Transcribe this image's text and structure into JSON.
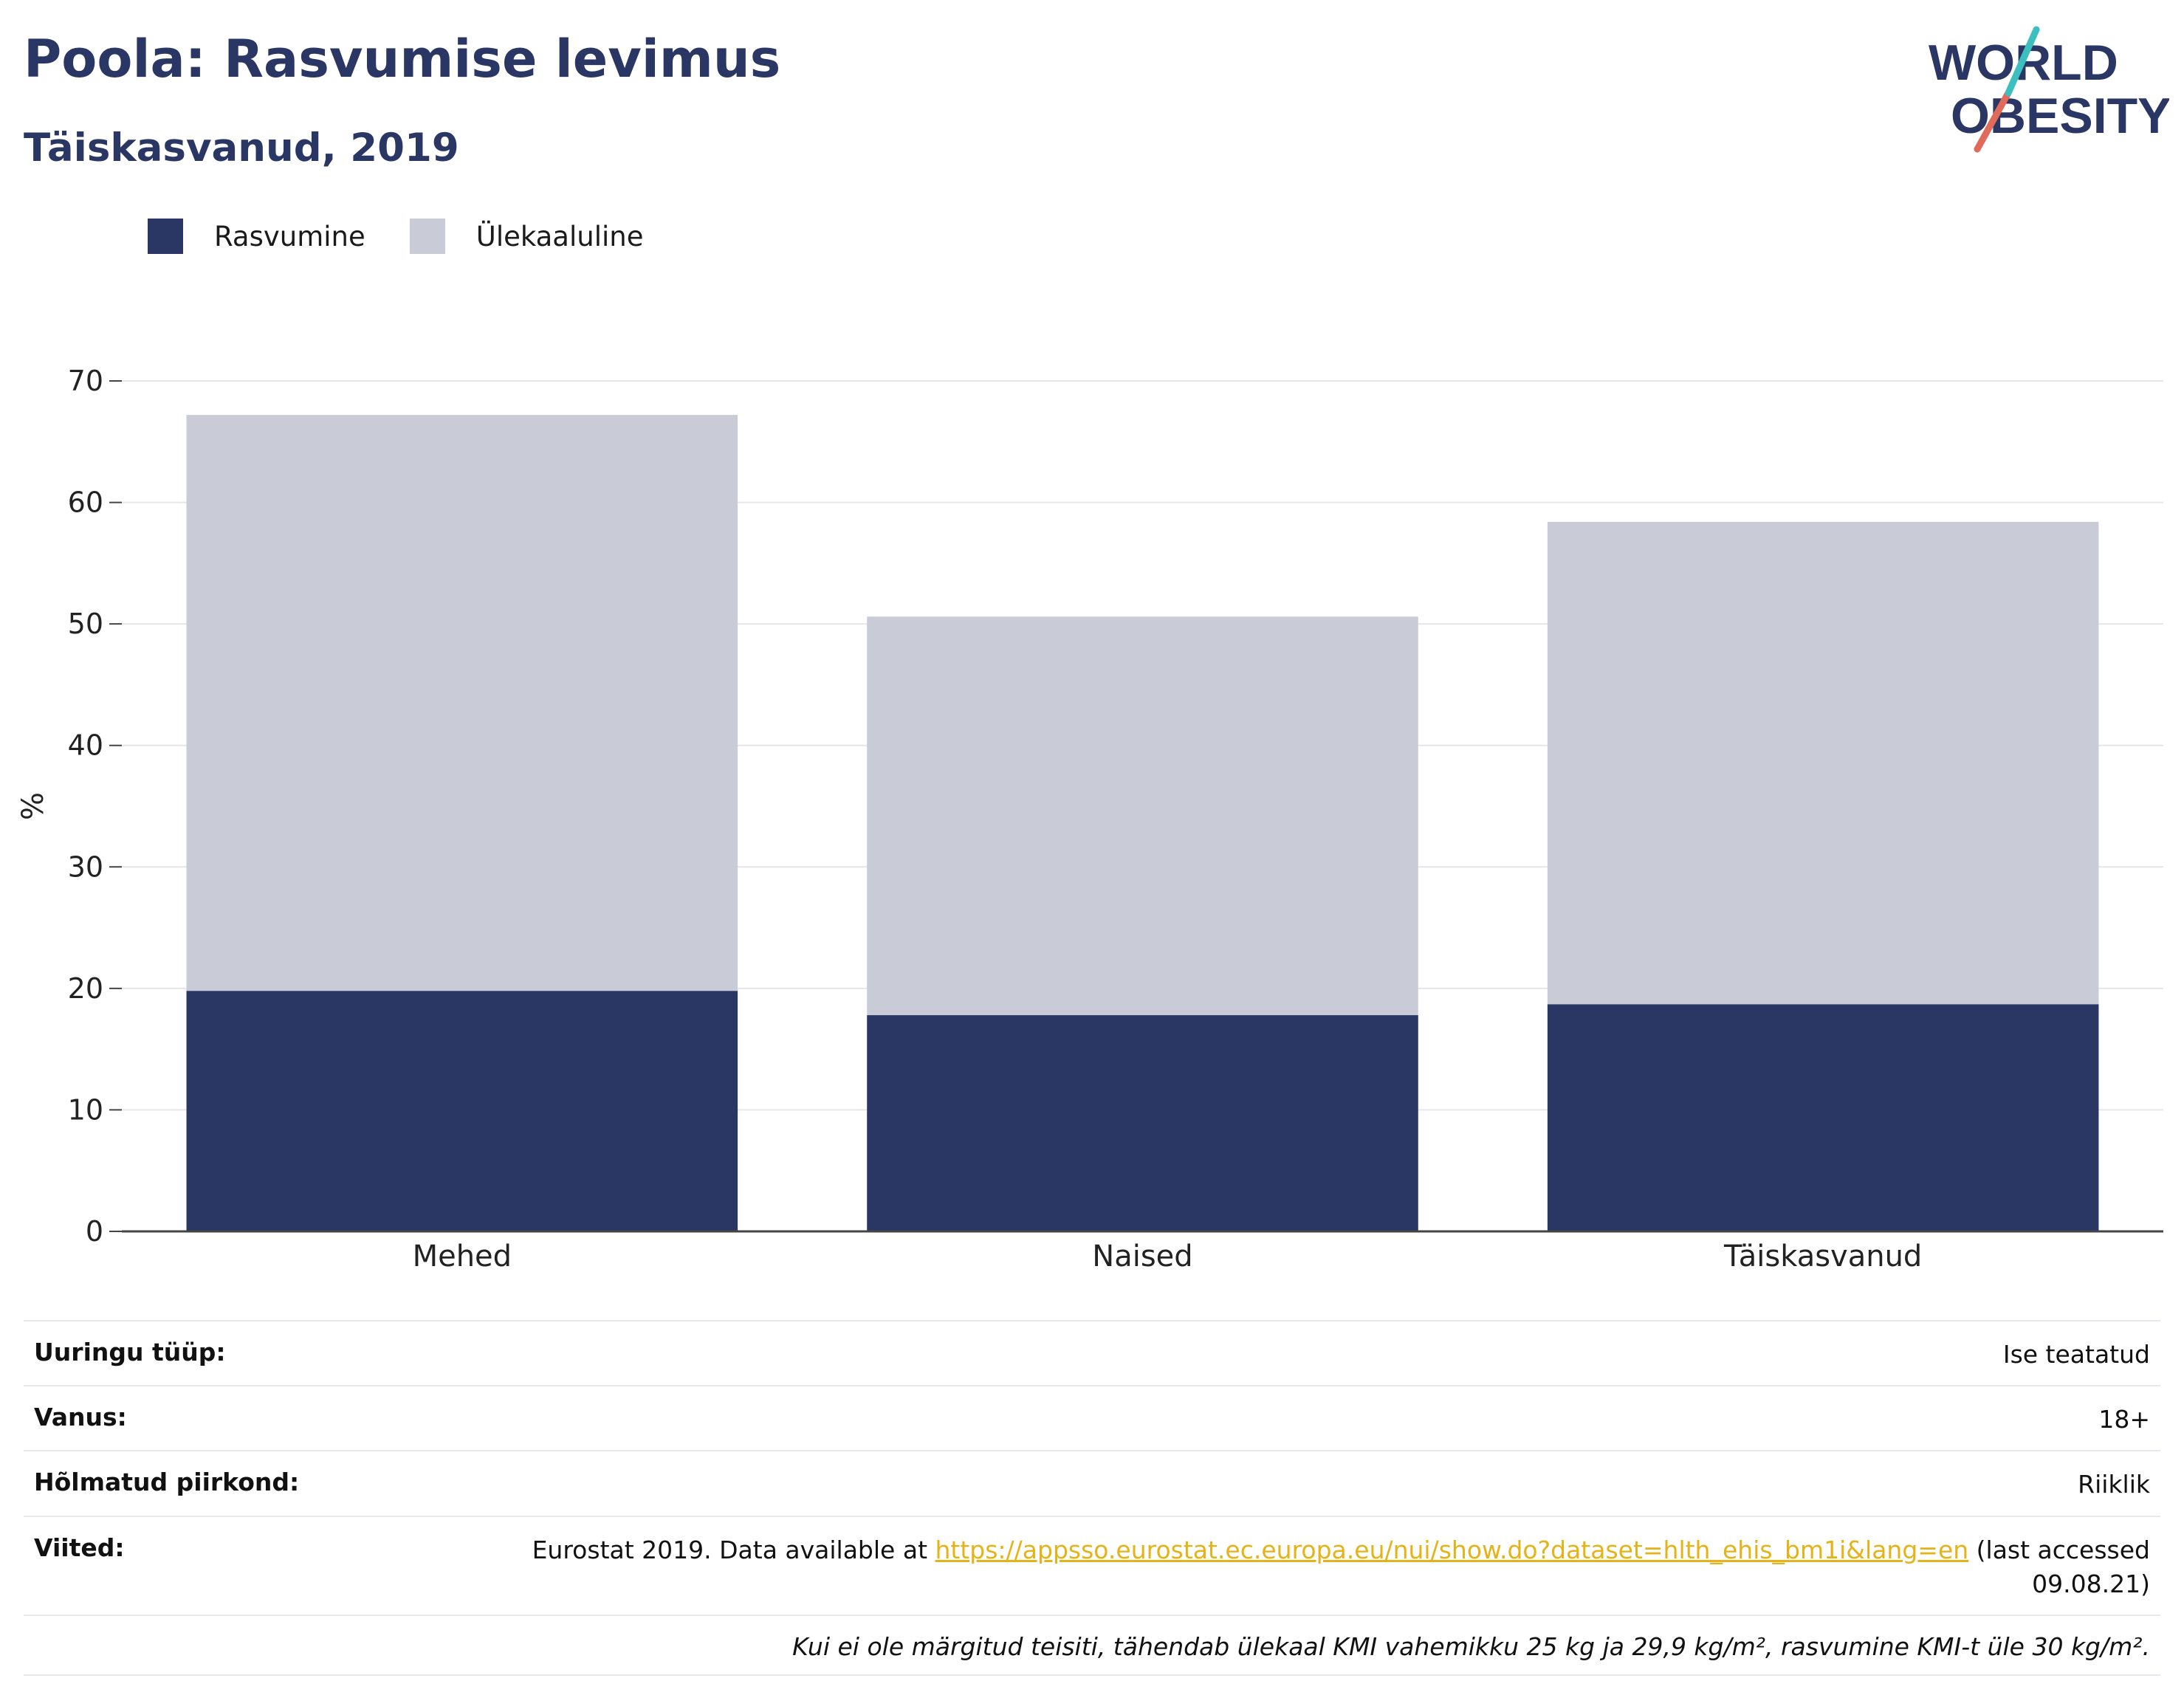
{
  "header": {
    "title": "Poola: Rasvumise levimus",
    "subtitle": "Täiskasvanud, 2019"
  },
  "logo": {
    "line1": "WORLD",
    "line2": "OBESITY",
    "icon": "world-obesity-logo"
  },
  "colors": {
    "obesity": "#2a3764",
    "overweight": "#c9ccd7",
    "accent_red": "#e06b5b",
    "accent_teal": "#3ebfbf",
    "link": "#e5b218"
  },
  "legend": [
    {
      "label": "Rasvumine",
      "color": "#2a3764"
    },
    {
      "label": "Ülekaaluline",
      "color": "#c9ccd7"
    }
  ],
  "chart_data": {
    "type": "bar",
    "stacked": true,
    "categories": [
      "Mehed",
      "Naised",
      "Täiskasvanud"
    ],
    "series": [
      {
        "name": "Rasvumine",
        "values": [
          19.8,
          17.8,
          18.7
        ]
      },
      {
        "name": "Ülekaaluline",
        "values": [
          47.4,
          32.8,
          39.7
        ]
      }
    ],
    "ylabel": "%",
    "ylim": [
      0,
      70
    ],
    "yticks": [
      0,
      10,
      20,
      30,
      40,
      50,
      60,
      70
    ],
    "grid": true,
    "legend_position": "top-left"
  },
  "info": {
    "survey_type_label": "Uuringu tüüp:",
    "survey_type_value": "Ise teatatud",
    "age_label": "Vanus:",
    "age_value": "18+",
    "region_label": "Hõlmatud piirkond:",
    "region_value": "Riiklik",
    "refs_label": "Viited:",
    "refs_prefix": "Eurostat 2019. Data available at ",
    "refs_link": "https://appsso.eurostat.ec.europa.eu/nui/show.do?dataset=hlth_ehis_bm1i&lang=en",
    "refs_suffix": " (last accessed 09.08.21)",
    "note": "Kui ei ole märgitud teisiti, tähendab ülekaal KMI vahemikku 25 kg ja 29,9 kg/m², rasvumine KMI-t üle 30 kg/m²."
  }
}
